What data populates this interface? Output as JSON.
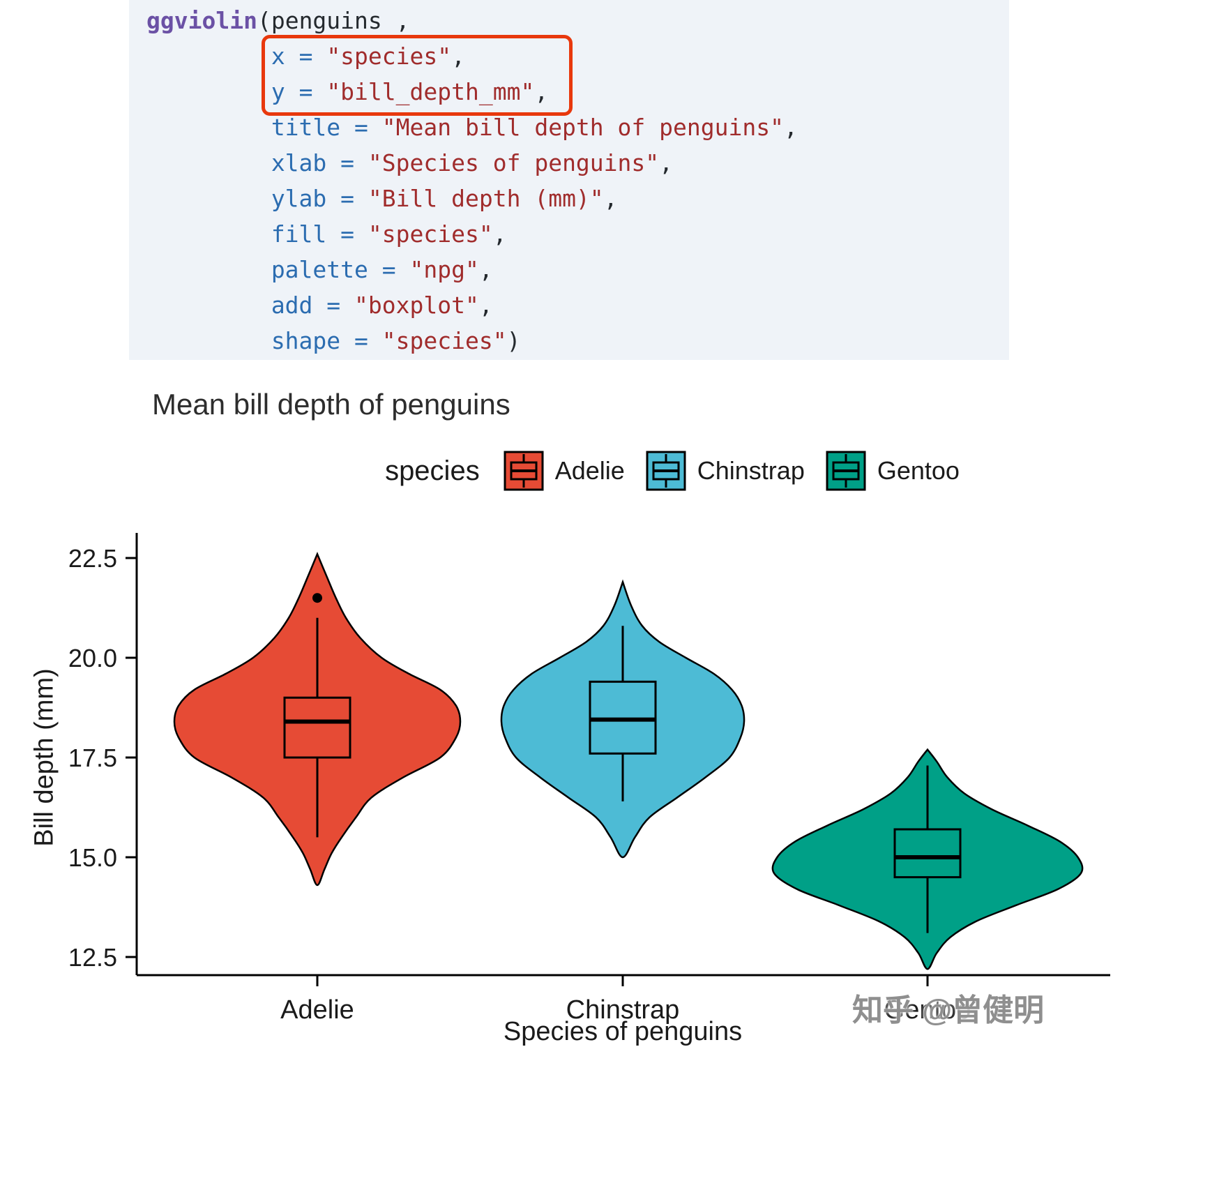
{
  "code_block": {
    "background": "#eff3f8",
    "highlight_box_color": "#e8380d",
    "highlighted_lines": [
      1,
      2
    ],
    "lines": [
      [
        {
          "t": "ggviolin",
          "c": "func"
        },
        {
          "t": "(",
          "c": "plain"
        },
        {
          "t": "penguins",
          "c": "plain"
        },
        {
          "t": " ,",
          "c": "plain"
        }
      ],
      [
        {
          "t": "         ",
          "c": "plain"
        },
        {
          "t": "x",
          "c": "arg"
        },
        {
          "t": " ",
          "c": "plain"
        },
        {
          "t": "=",
          "c": "op"
        },
        {
          "t": " ",
          "c": "plain"
        },
        {
          "t": "\"species\"",
          "c": "str"
        },
        {
          "t": ",",
          "c": "plain"
        }
      ],
      [
        {
          "t": "         ",
          "c": "plain"
        },
        {
          "t": "y",
          "c": "arg"
        },
        {
          "t": " ",
          "c": "plain"
        },
        {
          "t": "=",
          "c": "op"
        },
        {
          "t": " ",
          "c": "plain"
        },
        {
          "t": "\"bill_depth_mm\"",
          "c": "str"
        },
        {
          "t": ",",
          "c": "plain"
        }
      ],
      [
        {
          "t": "         ",
          "c": "plain"
        },
        {
          "t": "title",
          "c": "arg"
        },
        {
          "t": " ",
          "c": "plain"
        },
        {
          "t": "=",
          "c": "op"
        },
        {
          "t": " ",
          "c": "plain"
        },
        {
          "t": "\"Mean bill depth of penguins\"",
          "c": "str"
        },
        {
          "t": ",",
          "c": "plain"
        }
      ],
      [
        {
          "t": "         ",
          "c": "plain"
        },
        {
          "t": "xlab",
          "c": "arg"
        },
        {
          "t": " ",
          "c": "plain"
        },
        {
          "t": "=",
          "c": "op"
        },
        {
          "t": " ",
          "c": "plain"
        },
        {
          "t": "\"Species of penguins\"",
          "c": "str"
        },
        {
          "t": ",",
          "c": "plain"
        }
      ],
      [
        {
          "t": "         ",
          "c": "plain"
        },
        {
          "t": "ylab",
          "c": "arg"
        },
        {
          "t": " ",
          "c": "plain"
        },
        {
          "t": "=",
          "c": "op"
        },
        {
          "t": " ",
          "c": "plain"
        },
        {
          "t": "\"Bill depth (mm)\"",
          "c": "str"
        },
        {
          "t": ",",
          "c": "plain"
        }
      ],
      [
        {
          "t": "         ",
          "c": "plain"
        },
        {
          "t": "fill",
          "c": "arg"
        },
        {
          "t": " ",
          "c": "plain"
        },
        {
          "t": "=",
          "c": "op"
        },
        {
          "t": " ",
          "c": "plain"
        },
        {
          "t": "\"species\"",
          "c": "str"
        },
        {
          "t": ",",
          "c": "plain"
        }
      ],
      [
        {
          "t": "         ",
          "c": "plain"
        },
        {
          "t": "palette",
          "c": "arg"
        },
        {
          "t": " ",
          "c": "plain"
        },
        {
          "t": "=",
          "c": "op"
        },
        {
          "t": " ",
          "c": "plain"
        },
        {
          "t": "\"npg\"",
          "c": "str"
        },
        {
          "t": ",",
          "c": "plain"
        }
      ],
      [
        {
          "t": "         ",
          "c": "plain"
        },
        {
          "t": "add",
          "c": "arg"
        },
        {
          "t": " ",
          "c": "plain"
        },
        {
          "t": "=",
          "c": "op"
        },
        {
          "t": " ",
          "c": "plain"
        },
        {
          "t": "\"boxplot\"",
          "c": "str"
        },
        {
          "t": ",",
          "c": "plain"
        }
      ],
      [
        {
          "t": "         ",
          "c": "plain"
        },
        {
          "t": "shape",
          "c": "arg"
        },
        {
          "t": " ",
          "c": "plain"
        },
        {
          "t": "=",
          "c": "op"
        },
        {
          "t": " ",
          "c": "plain"
        },
        {
          "t": "\"species\"",
          "c": "str"
        },
        {
          "t": ")",
          "c": "plain"
        }
      ]
    ]
  },
  "chart": {
    "title": "Mean bill depth of penguins",
    "xlabel": "Species of penguins",
    "ylabel": "Bill depth (mm)",
    "legend": {
      "title": "species",
      "position": "top",
      "items": [
        {
          "label": "Adelie",
          "color": "#E64B35"
        },
        {
          "label": "Chinstrap",
          "color": "#4DBBD5"
        },
        {
          "label": "Gentoo",
          "color": "#00A087"
        }
      ]
    },
    "y_tick_labels": [
      "22.5",
      "20.0",
      "17.5",
      "15.0",
      "12.5"
    ],
    "x_tick_labels": [
      "Adelie",
      "Chinstrap",
      "Gentoo"
    ]
  },
  "chart_data": {
    "type": "violin",
    "title": "Mean bill depth of penguins",
    "xlabel": "Species of penguins",
    "ylabel": "Bill depth (mm)",
    "legend_title": "species",
    "legend_position": "top",
    "categories": [
      "Adelie",
      "Chinstrap",
      "Gentoo"
    ],
    "ylim": [
      12.0,
      23.1
    ],
    "y_ticks": [
      12.5,
      15.0,
      17.5,
      20.0,
      22.5
    ],
    "grid": false,
    "series": [
      {
        "name": "Adelie",
        "color": "#E64B35",
        "box": {
          "median": 18.4,
          "q1": 17.5,
          "q3": 19.0,
          "whisker_low": 15.5,
          "whisker_high": 21.0,
          "outliers": [
            21.5
          ]
        },
        "violin_range": [
          14.3,
          22.6
        ],
        "density_profile": [
          [
            14.3,
            0
          ],
          [
            14.7,
            0.05
          ],
          [
            15.1,
            0.1
          ],
          [
            15.5,
            0.17
          ],
          [
            16.0,
            0.27
          ],
          [
            16.5,
            0.38
          ],
          [
            17.0,
            0.6
          ],
          [
            17.5,
            0.86
          ],
          [
            18.0,
            0.97
          ],
          [
            18.4,
            1.0
          ],
          [
            18.8,
            0.97
          ],
          [
            19.2,
            0.86
          ],
          [
            19.6,
            0.64
          ],
          [
            20.0,
            0.45
          ],
          [
            20.5,
            0.3
          ],
          [
            21.0,
            0.2
          ],
          [
            21.5,
            0.13
          ],
          [
            22.0,
            0.07
          ],
          [
            22.6,
            0
          ]
        ]
      },
      {
        "name": "Chinstrap",
        "color": "#4DBBD5",
        "box": {
          "median": 18.45,
          "q1": 17.6,
          "q3": 19.4,
          "whisker_low": 16.4,
          "whisker_high": 20.8,
          "outliers": []
        },
        "violin_range": [
          15.0,
          21.9
        ],
        "density_profile": [
          [
            15.0,
            0
          ],
          [
            15.5,
            0.1
          ],
          [
            16.0,
            0.22
          ],
          [
            16.5,
            0.45
          ],
          [
            17.0,
            0.68
          ],
          [
            17.5,
            0.88
          ],
          [
            18.0,
            0.97
          ],
          [
            18.4,
            1.0
          ],
          [
            18.8,
            0.98
          ],
          [
            19.2,
            0.9
          ],
          [
            19.6,
            0.75
          ],
          [
            20.0,
            0.52
          ],
          [
            20.4,
            0.3
          ],
          [
            20.8,
            0.16
          ],
          [
            21.3,
            0.07
          ],
          [
            21.9,
            0
          ]
        ]
      },
      {
        "name": "Gentoo",
        "color": "#00A087",
        "box": {
          "median": 15.0,
          "q1": 14.5,
          "q3": 15.7,
          "whisker_low": 13.1,
          "whisker_high": 17.3,
          "outliers": []
        },
        "violin_range": [
          12.2,
          17.7
        ],
        "density_profile": [
          [
            12.2,
            0
          ],
          [
            12.6,
            0.06
          ],
          [
            13.0,
            0.15
          ],
          [
            13.4,
            0.32
          ],
          [
            13.8,
            0.58
          ],
          [
            14.2,
            0.85
          ],
          [
            14.6,
            1.0
          ],
          [
            15.0,
            0.98
          ],
          [
            15.4,
            0.86
          ],
          [
            15.8,
            0.65
          ],
          [
            16.2,
            0.42
          ],
          [
            16.6,
            0.24
          ],
          [
            17.0,
            0.13
          ],
          [
            17.4,
            0.06
          ],
          [
            17.7,
            0
          ]
        ]
      }
    ]
  },
  "watermark": {
    "text": "知乎 @曾健明"
  }
}
